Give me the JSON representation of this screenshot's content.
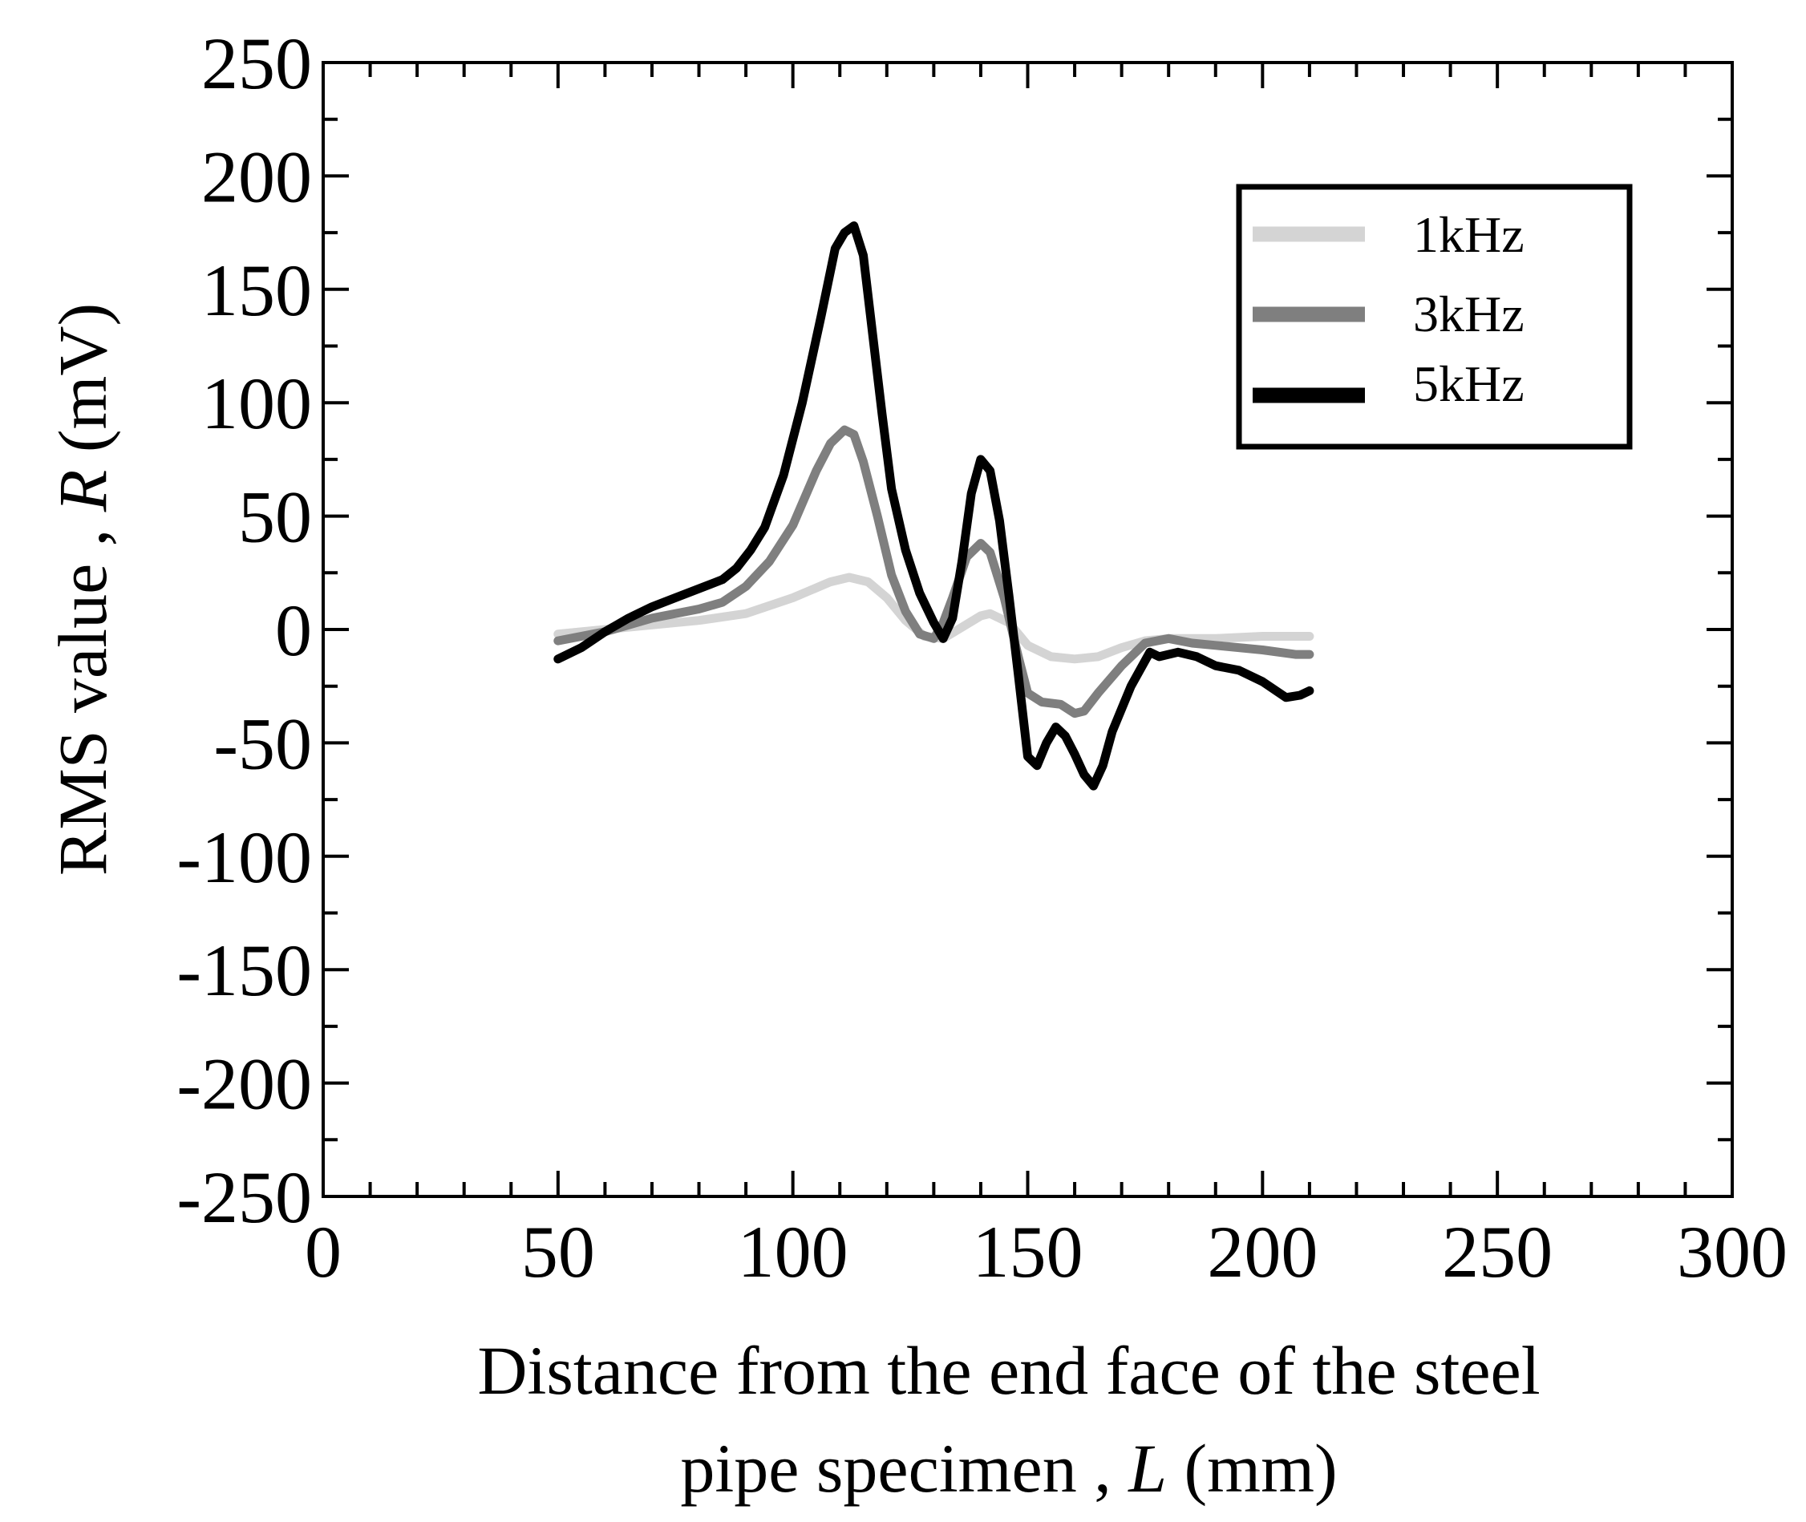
{
  "chart_data": {
    "type": "line",
    "xlabel_line1": "Distance from the end face of the steel",
    "xlabel_line2_prefix": "pipe specimen , ",
    "xlabel_line2_var": "L",
    "xlabel_line2_unit": " (mm)",
    "ylabel_prefix": "RMS value , ",
    "ylabel_var": "R",
    "ylabel_unit": " (mV)",
    "xlim": [
      0,
      300
    ],
    "ylim": [
      -250,
      250
    ],
    "x_ticks": [
      0,
      50,
      100,
      150,
      200,
      250,
      300
    ],
    "y_ticks": [
      250,
      200,
      150,
      100,
      50,
      0,
      -50,
      -100,
      -150,
      -200,
      -250
    ],
    "x_minor_step": 10,
    "y_minor_step": 25,
    "grid": false,
    "legend_position": "top-right",
    "series": [
      {
        "name": "1kHz",
        "color": "#d4d4d4",
        "x": [
          50,
          60,
          70,
          80,
          90,
          100,
          108,
          112,
          116,
          120,
          124,
          128,
          132,
          136,
          140,
          142,
          146,
          150,
          155,
          160,
          165,
          170,
          175,
          180,
          190,
          200,
          210
        ],
        "y": [
          -2,
          0,
          2,
          4,
          7,
          14,
          21,
          23,
          21,
          14,
          4,
          -3,
          -4,
          1,
          6,
          7,
          3,
          -7,
          -12,
          -13,
          -12,
          -8,
          -5,
          -4,
          -4,
          -3,
          -3
        ]
      },
      {
        "name": "3kHz",
        "color": "#7f7f7f",
        "x": [
          50,
          60,
          70,
          80,
          85,
          90,
          95,
          100,
          105,
          108,
          111,
          113,
          115,
          118,
          121,
          124,
          127,
          130,
          132,
          134,
          137,
          140,
          142,
          145,
          148,
          150,
          153,
          157,
          160,
          162,
          165,
          170,
          175,
          180,
          185,
          190,
          200,
          207,
          210
        ],
        "y": [
          -5,
          -1,
          5,
          9,
          12,
          19,
          30,
          46,
          70,
          82,
          88,
          86,
          74,
          50,
          24,
          8,
          -2,
          -4,
          3,
          14,
          32,
          38,
          34,
          14,
          -12,
          -28,
          -32,
          -33,
          -37,
          -36,
          -28,
          -16,
          -6,
          -4,
          -6,
          -7,
          -9,
          -11,
          -11
        ]
      },
      {
        "name": "5kHz",
        "color": "#000000",
        "x": [
          50,
          55,
          60,
          65,
          70,
          75,
          80,
          85,
          88,
          91,
          94,
          98,
          102,
          106,
          109,
          111,
          113,
          115,
          117,
          119,
          121,
          124,
          127,
          130,
          132,
          134,
          136,
          138,
          140,
          142,
          144,
          146,
          148,
          150,
          152,
          154,
          156,
          158,
          160,
          162,
          164,
          166,
          168,
          172,
          176,
          178,
          182,
          186,
          190,
          195,
          200,
          205,
          208,
          210
        ],
        "y": [
          -13,
          -8,
          -1,
          5,
          10,
          14,
          18,
          22,
          27,
          35,
          45,
          68,
          100,
          138,
          168,
          175,
          178,
          165,
          130,
          95,
          62,
          35,
          16,
          3,
          -4,
          5,
          30,
          60,
          75,
          70,
          48,
          15,
          -20,
          -56,
          -60,
          -50,
          -43,
          -47,
          -55,
          -64,
          -69,
          -60,
          -45,
          -25,
          -10,
          -12,
          -10,
          -12,
          -16,
          -18,
          -23,
          -30,
          -29,
          -27
        ]
      }
    ]
  }
}
